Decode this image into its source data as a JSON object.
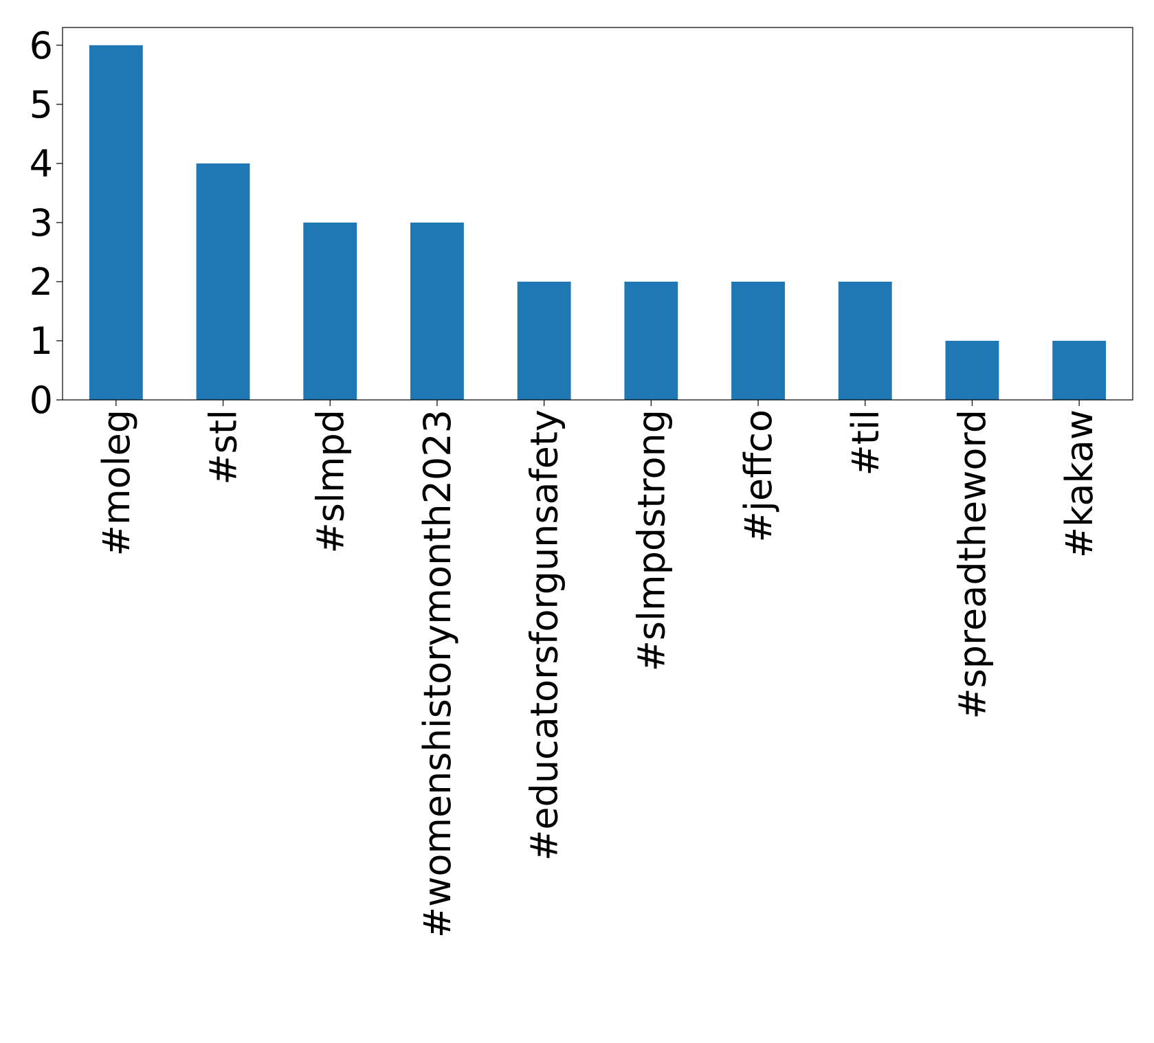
{
  "chart_data": {
    "type": "bar",
    "categories": [
      "#moleg",
      "#stl",
      "#slmpd",
      "#womenshistorymonth2023",
      "#educatorsforgunsafety",
      "#slmpdstrong",
      "#jeffco",
      "#til",
      "#spreadtheword",
      "#kakaw"
    ],
    "values": [
      6,
      4,
      3,
      3,
      2,
      2,
      2,
      2,
      1,
      1
    ],
    "color": "#1f77b4",
    "ylim": [
      0,
      6.3
    ],
    "yticks": [
      0,
      1,
      2,
      3,
      4,
      5,
      6
    ],
    "grid": false
  }
}
